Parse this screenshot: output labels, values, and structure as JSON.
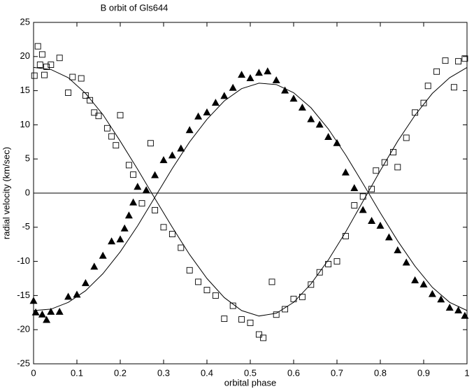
{
  "chart_data": {
    "type": "scatter",
    "title": "B orbit of Gls644",
    "x_label": "orbital phase",
    "y_label": "radial velocity (km/sec)",
    "xlim": [
      0,
      1
    ],
    "ylim": [
      -25,
      25
    ],
    "xticks": [
      0,
      0.1,
      0.2,
      0.3,
      0.4,
      0.5,
      0.6,
      0.7,
      0.8,
      0.9,
      1
    ],
    "yticks": [
      -25,
      -20,
      -15,
      -10,
      -5,
      0,
      5,
      10,
      15,
      20,
      25
    ],
    "hlines": [
      0
    ],
    "grid": false,
    "series": [
      {
        "marker": "square",
        "color": "#000000",
        "x": [
          0.002,
          0.01,
          0.015,
          0.02,
          0.025,
          0.03,
          0.04,
          0.06,
          0.08,
          0.09,
          0.11,
          0.12,
          0.13,
          0.14,
          0.15,
          0.17,
          0.18,
          0.19,
          0.2,
          0.22,
          0.23,
          0.25,
          0.27,
          0.28,
          0.3,
          0.32,
          0.34,
          0.36,
          0.38,
          0.4,
          0.42,
          0.44,
          0.46,
          0.48,
          0.5,
          0.52,
          0.53,
          0.55,
          0.56,
          0.58,
          0.6,
          0.62,
          0.64,
          0.66,
          0.68,
          0.7,
          0.72,
          0.74,
          0.76,
          0.78,
          0.79,
          0.81,
          0.83,
          0.84,
          0.86,
          0.88,
          0.9,
          0.91,
          0.93,
          0.95,
          0.97,
          0.98,
          0.995
        ],
        "values": [
          17.2,
          21.5,
          18.8,
          20.3,
          17.3,
          18.5,
          18.8,
          19.8,
          14.7,
          17,
          16.8,
          14.3,
          13.6,
          11.8,
          11.3,
          9.5,
          8.3,
          7,
          11.4,
          4.1,
          2.7,
          -1.5,
          7.3,
          -2.5,
          -5,
          -6,
          -8,
          -11.3,
          -13,
          -14.2,
          -15,
          -18.4,
          -16.5,
          -18.5,
          -19,
          -20.7,
          -21.2,
          -13,
          -17.8,
          -17,
          -15.5,
          -15.2,
          -13.4,
          -11.6,
          -10.4,
          -10,
          -6.3,
          -1.8,
          -0.5,
          0.6,
          3.3,
          4.5,
          6,
          3.8,
          8.1,
          11.8,
          13.2,
          15.7,
          17.8,
          19.4,
          15.5,
          19.3,
          19.7
        ]
      },
      {
        "marker": "triangle",
        "color": "#000000",
        "x": [
          0,
          0.005,
          0.02,
          0.03,
          0.04,
          0.06,
          0.08,
          0.1,
          0.12,
          0.14,
          0.16,
          0.18,
          0.2,
          0.21,
          0.22,
          0.23,
          0.24,
          0.26,
          0.28,
          0.3,
          0.32,
          0.34,
          0.36,
          0.38,
          0.4,
          0.42,
          0.44,
          0.46,
          0.48,
          0.5,
          0.52,
          0.54,
          0.56,
          0.58,
          0.6,
          0.62,
          0.64,
          0.66,
          0.68,
          0.7,
          0.72,
          0.74,
          0.76,
          0.78,
          0.8,
          0.82,
          0.84,
          0.86,
          0.88,
          0.9,
          0.92,
          0.94,
          0.96,
          0.98,
          0.995
        ],
        "values": [
          -15.8,
          -17.5,
          -17.8,
          -18.6,
          -17.4,
          -17.4,
          -15.2,
          -14.9,
          -13.2,
          -10.8,
          -9.2,
          -7.1,
          -6.8,
          -5.2,
          -3.3,
          -1.4,
          0.9,
          0.4,
          2.6,
          4.8,
          5.5,
          6.5,
          9.2,
          11.2,
          11.8,
          13.2,
          14.2,
          15.4,
          17.3,
          16.8,
          17.6,
          17.8,
          16.5,
          15,
          13.8,
          12.5,
          10.8,
          10,
          8.2,
          7.3,
          3,
          0.7,
          -2.5,
          -4.1,
          -4.8,
          -6.5,
          -8.4,
          -10.2,
          -12.8,
          -13.4,
          -14.8,
          -15.6,
          -16.8,
          -17.2,
          -18
        ]
      },
      {
        "marker": "line",
        "color": "#000000",
        "x": [
          0,
          0.04,
          0.08,
          0.12,
          0.16,
          0.2,
          0.24,
          0.28,
          0.32,
          0.36,
          0.4,
          0.44,
          0.48,
          0.52,
          0.56,
          0.6,
          0.64,
          0.68,
          0.72,
          0.76,
          0.8,
          0.84,
          0.88,
          0.92,
          0.96,
          1
        ],
        "values": [
          18.4,
          18.1,
          16.9,
          14.6,
          11.5,
          7.6,
          3.5,
          -0.8,
          -5,
          -9,
          -12.5,
          -15.3,
          -17.2,
          -18,
          -17.6,
          -16,
          -13.3,
          -9.8,
          -5.7,
          -1.2,
          3.3,
          7.6,
          11.4,
          14.6,
          16.9,
          18.4
        ]
      },
      {
        "marker": "line",
        "color": "#000000",
        "x": [
          0,
          0.04,
          0.08,
          0.12,
          0.16,
          0.2,
          0.24,
          0.28,
          0.32,
          0.36,
          0.4,
          0.44,
          0.48,
          0.52,
          0.56,
          0.6,
          0.64,
          0.68,
          0.72,
          0.76,
          0.8,
          0.84,
          0.88,
          0.92,
          0.96,
          1
        ],
        "values": [
          -17.2,
          -17,
          -16,
          -14.3,
          -11.8,
          -8.6,
          -4.8,
          -0.6,
          3.6,
          7.5,
          10.8,
          13.5,
          15.3,
          16.1,
          15.9,
          14.7,
          12.5,
          9.4,
          5.6,
          1.4,
          -2.9,
          -7,
          -10.7,
          -13.8,
          -16,
          -17.2
        ]
      }
    ]
  }
}
